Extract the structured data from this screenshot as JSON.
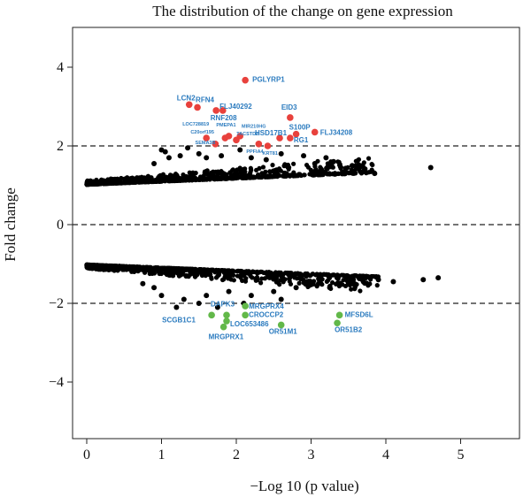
{
  "chart_data": {
    "type": "scatter",
    "title": "The distribution of the change on gene expression",
    "xlabel": "−Log 10 (p value)",
    "ylabel": "Fold change",
    "xlim": [
      -0.35,
      6.0
    ],
    "ylim": [
      -5.0,
      5.5
    ],
    "x_ticks": [
      "0",
      "1",
      "2",
      "3",
      "4",
      "5"
    ],
    "x_tick_values": [
      0,
      1,
      2,
      3,
      4,
      5
    ],
    "y_ticks": [
      "4",
      "2",
      "0",
      "−2",
      "−4"
    ],
    "y_tick_values": [
      4,
      2,
      0,
      -2,
      -4
    ],
    "thresholds": [
      2,
      -2
    ],
    "grid": false,
    "colors": {
      "background": "#000000",
      "up": "#e8413c",
      "down": "#62b849",
      "label": "#2b7bbf"
    },
    "background_points": {
      "description": "dense cloud of non-significant genes",
      "upper_band": {
        "x_range": [
          0,
          3.85
        ],
        "y_start": 1.0,
        "y_end": 1.3
      },
      "lower_band": {
        "x_range": [
          0,
          3.9
        ],
        "y_start": -1.0,
        "y_end": -1.3
      },
      "outliers": [
        [
          0.9,
          1.55
        ],
        [
          1.1,
          1.7
        ],
        [
          1.05,
          1.85
        ],
        [
          1.25,
          1.75
        ],
        [
          1.5,
          1.8
        ],
        [
          1.8,
          1.75
        ],
        [
          2.2,
          1.7
        ],
        [
          2.4,
          1.65
        ],
        [
          1.35,
          1.95
        ],
        [
          2.05,
          1.9
        ],
        [
          2.6,
          1.8
        ],
        [
          3.2,
          1.7
        ],
        [
          3.3,
          1.6
        ],
        [
          3.55,
          1.5
        ],
        [
          3.7,
          1.35
        ],
        [
          3.85,
          1.3
        ],
        [
          4.6,
          1.45
        ],
        [
          1.0,
          1.9
        ],
        [
          1.6,
          1.7
        ],
        [
          2.9,
          1.75
        ],
        [
          3.05,
          1.55
        ],
        [
          1.0,
          -1.8
        ],
        [
          1.2,
          -2.1
        ],
        [
          0.9,
          -1.6
        ],
        [
          1.3,
          -1.9
        ],
        [
          1.6,
          -1.8
        ],
        [
          1.9,
          -1.7
        ],
        [
          2.2,
          -1.8
        ],
        [
          2.5,
          -1.7
        ],
        [
          2.8,
          -1.6
        ],
        [
          3.1,
          -1.5
        ],
        [
          3.5,
          -1.5
        ],
        [
          3.7,
          -1.45
        ],
        [
          3.9,
          -1.4
        ],
        [
          4.5,
          -1.4
        ],
        [
          4.7,
          -1.35
        ],
        [
          1.75,
          -2.1
        ],
        [
          2.1,
          -2.0
        ],
        [
          2.6,
          -1.9
        ],
        [
          0.75,
          -1.5
        ],
        [
          1.5,
          -2.0
        ],
        [
          3.25,
          -1.6
        ],
        [
          4.1,
          -1.45
        ]
      ]
    },
    "series": [
      {
        "name": "up",
        "points": [
          {
            "x": 2.12,
            "y": 3.67,
            "label": "PGLYRP1"
          },
          {
            "x": 1.37,
            "y": 3.05,
            "label": "LCN2"
          },
          {
            "x": 1.48,
            "y": 2.98,
            "label": "RFN4"
          },
          {
            "x": 1.73,
            "y": 2.9,
            "label": "FLJ40292"
          },
          {
            "x": 1.82,
            "y": 2.9,
            "label": "RNF208"
          },
          {
            "x": 2.72,
            "y": 2.72,
            "label": "EID3"
          },
          {
            "x": 2.8,
            "y": 2.3,
            "label": "S100P"
          },
          {
            "x": 3.05,
            "y": 2.35,
            "label": "FLJ34208"
          },
          {
            "x": 2.58,
            "y": 2.2,
            "label": "HSD17B1"
          },
          {
            "x": 2.72,
            "y": 2.2,
            "label": "RG1"
          },
          {
            "x": 1.6,
            "y": 2.2,
            "label": "LOC728819"
          },
          {
            "x": 1.72,
            "y": 2.05,
            "label": "C20orf195"
          },
          {
            "x": 1.85,
            "y": 2.2,
            "label": "PMEPA1"
          },
          {
            "x": 1.9,
            "y": 2.25,
            "label": "SEMA3B"
          },
          {
            "x": 2.0,
            "y": 2.15,
            "label": "MIR210HG"
          },
          {
            "x": 2.05,
            "y": 2.25,
            "label": "TACSTD2"
          },
          {
            "x": 2.3,
            "y": 2.05,
            "label": "PPFIA4"
          },
          {
            "x": 2.42,
            "y": 2.0,
            "label": "KRT81"
          }
        ]
      },
      {
        "name": "down",
        "points": [
          {
            "x": 1.67,
            "y": -2.3,
            "label": "SCGB1C1"
          },
          {
            "x": 1.87,
            "y": -2.3,
            "label": "DAPK3"
          },
          {
            "x": 1.87,
            "y": -2.45,
            "label": "LOC653486"
          },
          {
            "x": 1.83,
            "y": -2.6,
            "label": "MRGPRX1"
          },
          {
            "x": 2.12,
            "y": -2.07,
            "label": "MRGPRX4"
          },
          {
            "x": 2.12,
            "y": -2.3,
            "label": "CROCCP2"
          },
          {
            "x": 2.6,
            "y": -2.55,
            "label": "OR51M1"
          },
          {
            "x": 3.38,
            "y": -2.3,
            "label": "MFSD6L"
          },
          {
            "x": 3.35,
            "y": -2.5,
            "label": "OR51B2"
          }
        ]
      }
    ]
  }
}
